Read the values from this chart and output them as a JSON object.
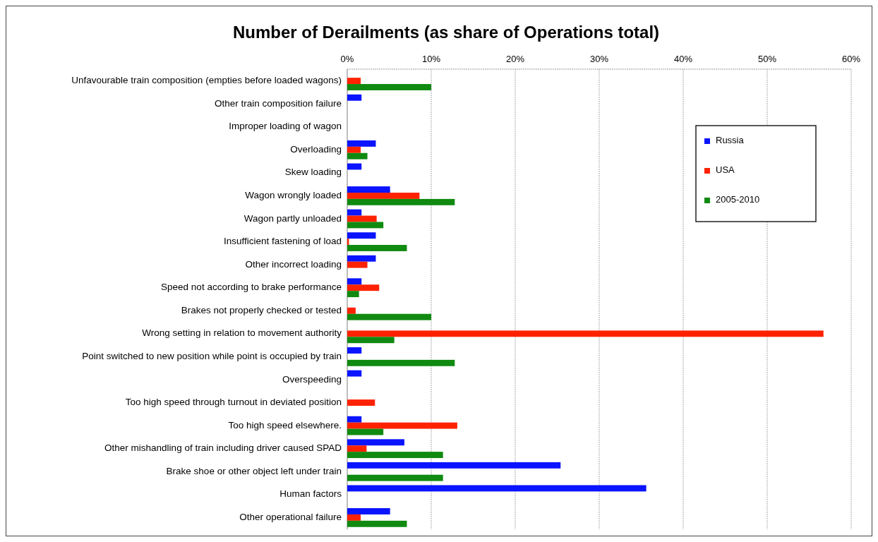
{
  "chart_data": {
    "type": "bar",
    "orientation": "horizontal",
    "title": "Number of Derailments (as share of Operations total)",
    "categories": [
      "Unfavourable train composition (empties before loaded wagons)",
      "Other train composition failure",
      "Improper loading of wagon",
      "Overloading",
      "Skew loading",
      "Wagon wrongly loaded",
      "Wagon partly unloaded",
      "Insufficient fastening of load",
      "Other incorrect loading",
      "Speed not according to brake performance",
      "Brakes not properly checked or tested",
      "Wrong setting in relation to movement authority",
      "Point switched to new position while point is occupied by train",
      "Overspeeding",
      "Too high speed through turnout in deviated position",
      "Too high speed elsewhere.",
      "Other mishandling of train including driver caused SPAD",
      "Brake shoe or other object left under train",
      "Human factors",
      "Other operational failure"
    ],
    "series": [
      {
        "name": "Russia",
        "color": "#0a14ff",
        "values": [
          0,
          1.7,
          0,
          3.4,
          1.7,
          5.1,
          1.7,
          3.4,
          3.4,
          1.7,
          0,
          0,
          1.7,
          1.7,
          0,
          1.7,
          6.8,
          25.4,
          35.6,
          5.1
        ]
      },
      {
        "name": "USA",
        "color": "#ff2200",
        "values": [
          1.6,
          0,
          0,
          1.6,
          0,
          8.6,
          3.5,
          0.2,
          2.4,
          3.8,
          1.0,
          56.7,
          0,
          0,
          3.3,
          13.1,
          2.3,
          0,
          0,
          1.6
        ]
      },
      {
        "name": "2005-2010",
        "color": "#108a10",
        "values": [
          10.0,
          0,
          0,
          2.4,
          0,
          12.8,
          4.3,
          7.1,
          0,
          1.4,
          10.0,
          5.6,
          12.8,
          0,
          0,
          4.3,
          11.4,
          11.4,
          0,
          7.1
        ]
      }
    ],
    "xlim": [
      0,
      60
    ],
    "xticks": [
      {
        "value": 0,
        "label": "0%"
      },
      {
        "value": 10,
        "label": "10%"
      },
      {
        "value": 20,
        "label": "20%"
      },
      {
        "value": 30,
        "label": "30%"
      },
      {
        "value": 40,
        "label": "40%"
      },
      {
        "value": 50,
        "label": "50%"
      },
      {
        "value": 60,
        "label": "60%"
      }
    ],
    "grid": "x",
    "legend": "top right"
  }
}
